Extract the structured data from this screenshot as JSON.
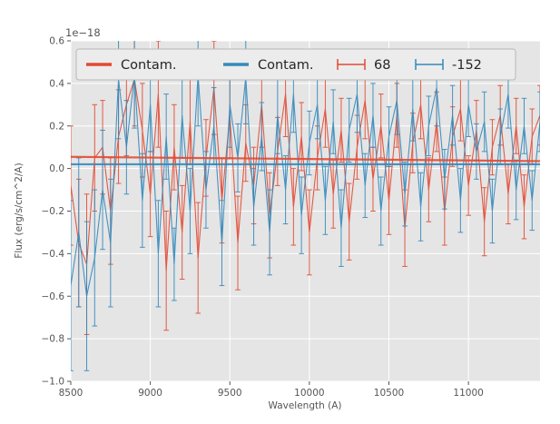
{
  "figure": {
    "background": "#ffffff",
    "plot_background": "#e5e5e5",
    "grid_color": "#ffffff",
    "tick_color": "#555555"
  },
  "chart_data": {
    "type": "line",
    "title": "",
    "xlabel": "Wavelength (A)",
    "ylabel": "Flux (erg/s/cm^2/A)",
    "y_offset_label": "1e−18",
    "xlim": [
      8500,
      11450
    ],
    "ylim": [
      -1.0,
      0.6
    ],
    "xticks": [
      8500,
      9000,
      9500,
      10000,
      10500,
      11000
    ],
    "yticks": [
      -1.0,
      -0.8,
      -0.6,
      -0.4,
      -0.2,
      0.0,
      0.2,
      0.4,
      0.6
    ],
    "grid": true,
    "legend_position": "upper-inside-horizontal",
    "colors": {
      "red": "#E24A33",
      "blue": "#348ABD"
    },
    "series": [
      {
        "name": "Contam.",
        "style": "line",
        "color": "#E24A33",
        "x": [
          8500,
          11450
        ],
        "y": [
          0.055,
          0.035
        ]
      },
      {
        "name": "Contam.",
        "style": "line",
        "color": "#348ABD",
        "x": [
          8500,
          11450
        ],
        "y": [
          0.02,
          0.02
        ]
      },
      {
        "name": "68",
        "style": "errorbar",
        "color": "#E24A33",
        "x": [
          8500,
          8550,
          8600,
          8650,
          8700,
          8750,
          8800,
          8850,
          8900,
          8950,
          9000,
          9050,
          9100,
          9150,
          9200,
          9250,
          9300,
          9350,
          9400,
          9450,
          9500,
          9550,
          9600,
          9650,
          9700,
          9750,
          9800,
          9850,
          9900,
          9950,
          10000,
          10050,
          10100,
          10150,
          10200,
          10250,
          10300,
          10350,
          10400,
          10450,
          10500,
          10550,
          10600,
          10650,
          10700,
          10750,
          10800,
          10850,
          10900,
          10950,
          11000,
          11050,
          11100,
          11150,
          11200,
          11250,
          11300,
          11350,
          11400,
          11450
        ],
        "y": [
          -0.08,
          -0.35,
          -0.45,
          0.05,
          0.1,
          -0.2,
          0.15,
          0.3,
          0.42,
          0.18,
          -0.12,
          0.35,
          -0.48,
          0.1,
          -0.3,
          0.22,
          -0.42,
          0.05,
          0.38,
          -0.15,
          0.25,
          -0.35,
          0.12,
          -0.08,
          0.3,
          -0.22,
          0.08,
          0.35,
          -0.18,
          0.15,
          -0.3,
          0.05,
          0.28,
          -0.12,
          0.18,
          -0.25,
          0.1,
          0.32,
          -0.05,
          0.2,
          -0.15,
          0.25,
          -0.28,
          0.12,
          0.3,
          -0.1,
          0.22,
          -0.2,
          0.15,
          0.28,
          -0.08,
          0.18,
          -0.25,
          0.1,
          0.25,
          -0.12,
          0.2,
          -0.18,
          0.15,
          0.25
        ],
        "yerr": [
          0.28,
          0.3,
          0.33,
          0.25,
          0.22,
          0.25,
          0.22,
          0.24,
          0.22,
          0.22,
          0.2,
          0.25,
          0.28,
          0.2,
          0.22,
          0.2,
          0.26,
          0.18,
          0.22,
          0.2,
          0.2,
          0.22,
          0.18,
          0.18,
          0.2,
          0.2,
          0.16,
          0.2,
          0.18,
          0.16,
          0.2,
          0.15,
          0.18,
          0.16,
          0.15,
          0.18,
          0.15,
          0.18,
          0.15,
          0.15,
          0.16,
          0.15,
          0.18,
          0.14,
          0.16,
          0.15,
          0.14,
          0.16,
          0.14,
          0.15,
          0.14,
          0.14,
          0.16,
          0.13,
          0.14,
          0.14,
          0.13,
          0.15,
          0.13,
          0.14
        ]
      },
      {
        "name": "-152",
        "style": "errorbar",
        "color": "#348ABD",
        "x": [
          8500,
          8550,
          8600,
          8650,
          8700,
          8750,
          8800,
          8850,
          8900,
          8950,
          9000,
          9050,
          9100,
          9150,
          9200,
          9250,
          9300,
          9350,
          9400,
          9450,
          9500,
          9550,
          9600,
          9650,
          9700,
          9750,
          9800,
          9850,
          9900,
          9950,
          10000,
          10050,
          10100,
          10150,
          10200,
          10250,
          10300,
          10350,
          10400,
          10450,
          10500,
          10550,
          10600,
          10650,
          10700,
          10750,
          10800,
          10850,
          10900,
          10950,
          11000,
          11050,
          11100,
          11150,
          11200,
          11250,
          11300,
          11350,
          11400,
          11450
        ],
        "y": [
          -0.55,
          -0.3,
          -0.6,
          -0.42,
          -0.1,
          -0.35,
          0.42,
          0.1,
          0.44,
          -0.15,
          0.3,
          -0.4,
          0.15,
          -0.45,
          0.25,
          -0.2,
          0.44,
          -0.1,
          0.2,
          -0.35,
          0.3,
          0.05,
          0.43,
          -0.18,
          0.15,
          -0.3,
          0.25,
          -0.1,
          0.35,
          -0.22,
          0.12,
          0.3,
          -0.15,
          0.22,
          -0.28,
          0.18,
          0.35,
          -0.08,
          0.25,
          -0.2,
          0.15,
          0.32,
          -0.12,
          0.28,
          -0.18,
          0.2,
          0.38,
          -0.05,
          0.25,
          -0.15,
          0.3,
          0.08,
          0.22,
          -0.2,
          0.15,
          0.35,
          -0.1,
          0.2,
          -0.15,
          0.22
        ],
        "yerr": [
          0.4,
          0.35,
          0.35,
          0.32,
          0.28,
          0.3,
          0.28,
          0.22,
          0.25,
          0.22,
          0.22,
          0.25,
          0.2,
          0.17,
          0.2,
          0.2,
          0.24,
          0.18,
          0.18,
          0.2,
          0.2,
          0.16,
          0.22,
          0.18,
          0.16,
          0.2,
          0.18,
          0.16,
          0.18,
          0.18,
          0.15,
          0.16,
          0.16,
          0.15,
          0.18,
          0.15,
          0.18,
          0.15,
          0.15,
          0.16,
          0.14,
          0.16,
          0.15,
          0.15,
          0.16,
          0.14,
          0.18,
          0.14,
          0.14,
          0.15,
          0.15,
          0.13,
          0.14,
          0.15,
          0.13,
          0.16,
          0.14,
          0.13,
          0.14,
          0.14
        ]
      }
    ]
  }
}
